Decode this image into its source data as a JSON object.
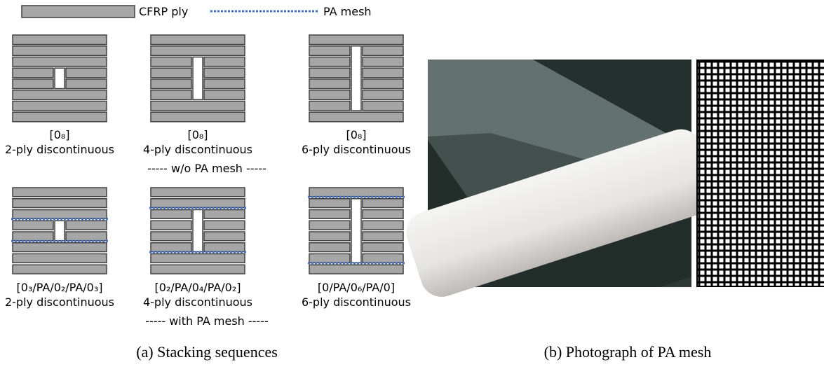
{
  "legend": {
    "ply": "CFRP ply",
    "mesh": "PA mesh"
  },
  "panels": [
    {
      "sequence": "[0₈]",
      "label": "2-ply discontinuous"
    },
    {
      "sequence": "[0₈]",
      "label": "4-ply discontinuous"
    },
    {
      "sequence": "[0₈]",
      "label": "6-ply discontinuous"
    },
    {
      "sequence": "[0₃/PA/0₂/PA/0₃]",
      "label": "2-ply discontinuous"
    },
    {
      "sequence": "[0₂/PA/0₄/PA/0₂]",
      "label": "4-ply discontinuous"
    },
    {
      "sequence": "[0/PA/0₆/PA/0]",
      "label": "6-ply discontinuous"
    }
  ],
  "group_labels": [
    "----- w/o PA mesh -----",
    "----- with PA mesh -----"
  ],
  "captions": [
    "(a) Stacking sequences",
    "(b) Photograph of PA mesh"
  ]
}
